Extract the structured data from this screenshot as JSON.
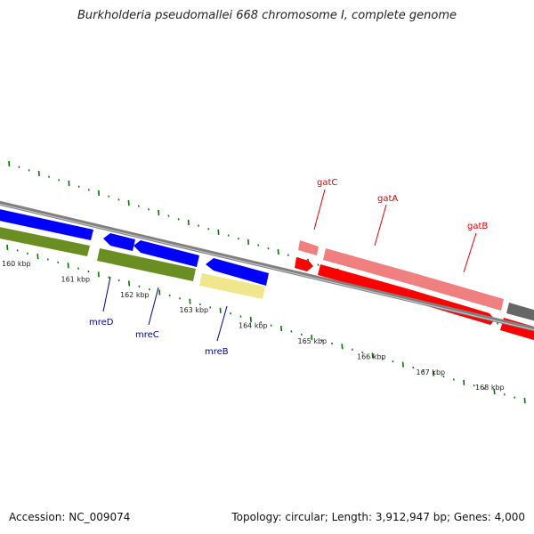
{
  "title": "Burkholderia pseudomallei 668 chromosome I, complete genome",
  "footer": {
    "accession_text": "Accession: NC_009074",
    "stats_text": "Topology: circular; Length: 3,912,947 bp; Genes: 4,000"
  },
  "colors": {
    "positive_cds": "#f08080",
    "positive_cds_alt": "#ff0000",
    "gene_label": "#dd0000",
    "negative_cds": "#0000ff",
    "negative_gene": "#6b8e23",
    "negative_gene_alt": "#f0e68c",
    "negative_label": "#000099",
    "backbone": "#808080",
    "tick": "#007700"
  },
  "ruler": {
    "labels": [
      "160 kbp",
      "161 kbp",
      "162 kbp",
      "163 kbp",
      "164 kbp",
      "165 kbp",
      "166 kbp",
      "167 kbp",
      "168 kbp"
    ]
  },
  "genes": {
    "positive": [
      "gatC",
      "gatA",
      "gatB"
    ],
    "negative": [
      "mreD",
      "mreC",
      "mreB"
    ]
  }
}
